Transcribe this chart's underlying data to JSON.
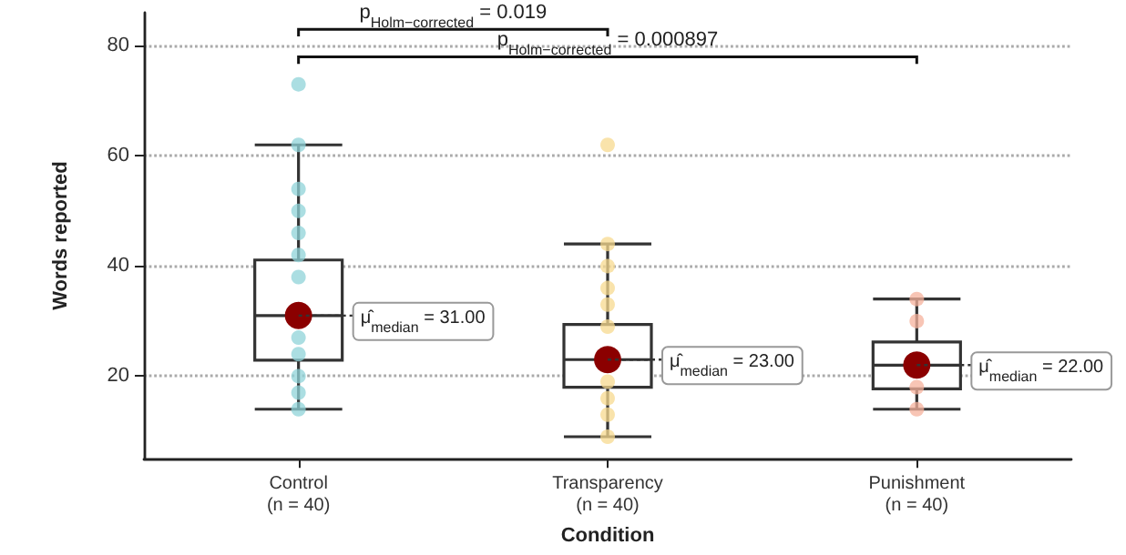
{
  "chart_data": {
    "type": "box",
    "xlabel": "Condition",
    "ylabel": "Words reported",
    "categories": [
      "Control\n(n = 40)",
      "Transparency\n(n = 40)",
      "Punishment\n(n = 40)"
    ],
    "boxes": [
      {
        "low": 14,
        "q1": 22.9,
        "median": 31,
        "q3": 41.1,
        "high": 62
      },
      {
        "low": 9,
        "q1": 18,
        "median": 23,
        "q3": 29.4,
        "high": 44
      },
      {
        "low": 14,
        "q1": 17.7,
        "median": 22,
        "q3": 26.2,
        "high": 34
      }
    ],
    "series": [
      {
        "type": "scatter",
        "color": "#8fd3d8",
        "x": [
          "Control\n(n = 40)",
          "Control\n(n = 40)",
          "Control\n(n = 40)",
          "Control\n(n = 40)",
          "Control\n(n = 40)",
          "Control\n(n = 40)",
          "Control\n(n = 40)",
          "Control\n(n = 40)",
          "Control\n(n = 40)",
          "Control\n(n = 40)",
          "Control\n(n = 40)",
          "Control\n(n = 40)"
        ],
        "values": [
          73,
          62,
          54,
          50,
          46,
          42,
          38,
          27,
          24,
          20,
          17,
          14
        ]
      },
      {
        "type": "scatter",
        "color": "#f7d98f",
        "x": [
          "Transparency\n(n = 40)",
          "Transparency\n(n = 40)",
          "Transparency\n(n = 40)",
          "Transparency\n(n = 40)",
          "Transparency\n(n = 40)",
          "Transparency\n(n = 40)",
          "Transparency\n(n = 40)",
          "Transparency\n(n = 40)",
          "Transparency\n(n = 40)",
          "Transparency\n(n = 40)"
        ],
        "values": [
          62,
          44,
          40,
          36,
          33,
          29,
          19,
          16,
          13,
          9
        ]
      },
      {
        "type": "scatter",
        "color": "#f6b29c",
        "x": [
          "Punishment\n(n = 40)",
          "Punishment\n(n = 40)",
          "Punishment\n(n = 40)",
          "Punishment\n(n = 40)"
        ],
        "values": [
          34,
          30,
          18,
          14
        ]
      },
      {
        "type": "scatter",
        "color": "#8b0000",
        "x": [
          "Control\n(n = 40)",
          "Transparency\n(n = 40)",
          "Punishment\n(n = 40)"
        ],
        "values": [
          31,
          23,
          22
        ]
      }
    ],
    "annotations": [
      "p$_{Holm−corrected}$ = 0.019",
      "p$_{Holm−corrected}$ = 0.000897",
      "μ̂$_{median}$ = 31.00",
      "μ̂$_{median}$ = 23.00",
      "μ̂$_{median}$ = 22.00"
    ],
    "ylim": [
      5,
      86
    ],
    "yticks": [
      20,
      40,
      60,
      80
    ],
    "grid": "y",
    "marker": "circle"
  }
}
